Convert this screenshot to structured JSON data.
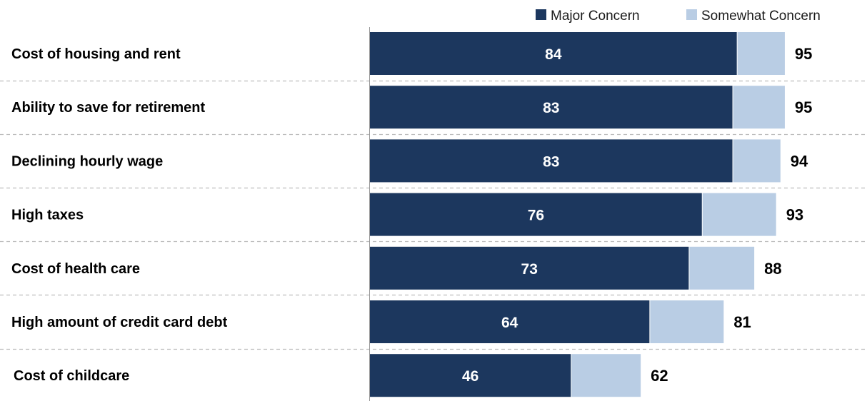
{
  "chart_data": {
    "type": "bar",
    "orientation": "horizontal",
    "stacked": true,
    "categories": [
      "Cost of housing and rent",
      "Ability to save for retirement",
      "Declining hourly wage",
      "High taxes",
      "Cost of health care",
      "High amount of credit card debt",
      "Cost of childcare"
    ],
    "series": [
      {
        "name": "Major Concern",
        "values": [
          84,
          83,
          83,
          76,
          73,
          64,
          46
        ],
        "color": "#1c375e"
      },
      {
        "name": "Somewhat Concern",
        "values": [
          11,
          12,
          11,
          17,
          15,
          17,
          16
        ],
        "color": "#b9cde4"
      }
    ],
    "totals": [
      95,
      95,
      94,
      93,
      88,
      81,
      62
    ],
    "xlim": [
      0,
      100
    ],
    "legend_position": "top-right",
    "grid": false,
    "row_separators": "dashed"
  }
}
